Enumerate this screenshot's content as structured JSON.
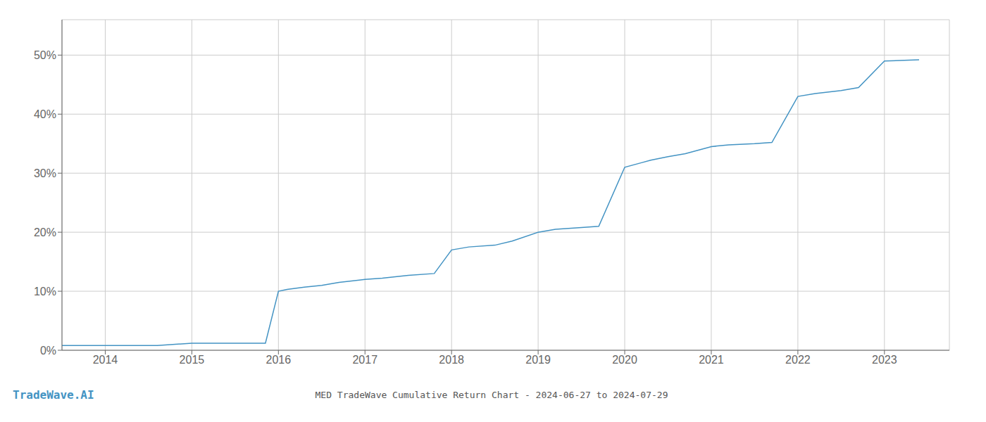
{
  "chart_data": {
    "type": "line",
    "title": "MED TradeWave Cumulative Return Chart - 2024-06-27 to 2024-07-29",
    "annotations": [
      "TradeWave.AI"
    ],
    "color": "#4393c3",
    "x": [
      2013.5,
      2014.0,
      2014.3,
      2014.6,
      2015.0,
      2015.1,
      2015.5,
      2015.85,
      2016.0,
      2016.1,
      2016.3,
      2016.5,
      2016.7,
      2017.0,
      2017.2,
      2017.5,
      2017.8,
      2018.0,
      2018.2,
      2018.5,
      2018.7,
      2019.0,
      2019.2,
      2019.5,
      2019.7,
      2020.0,
      2020.2,
      2020.3,
      2020.5,
      2020.7,
      2021.0,
      2021.2,
      2021.5,
      2021.7,
      2022.0,
      2022.2,
      2022.5,
      2022.7,
      2023.0,
      2023.4
    ],
    "values": [
      0.008,
      0.008,
      0.008,
      0.008,
      0.012,
      0.012,
      0.012,
      0.012,
      0.1,
      0.103,
      0.107,
      0.11,
      0.115,
      0.12,
      0.122,
      0.127,
      0.13,
      0.17,
      0.175,
      0.178,
      0.185,
      0.2,
      0.205,
      0.208,
      0.21,
      0.31,
      0.318,
      0.322,
      0.328,
      0.333,
      0.345,
      0.348,
      0.35,
      0.352,
      0.43,
      0.435,
      0.44,
      0.445,
      0.49,
      0.492
    ],
    "xlim": [
      2013.5,
      2023.75
    ],
    "xticks": [
      2014,
      2015,
      2016,
      2017,
      2018,
      2019,
      2020,
      2021,
      2022,
      2023
    ],
    "ylim": [
      0.0,
      0.56
    ],
    "yticks": [
      {
        "value": 0.0,
        "label": "0%"
      },
      {
        "value": 0.1,
        "label": "10%"
      },
      {
        "value": 0.2,
        "label": "20%"
      },
      {
        "value": 0.3,
        "label": "30%"
      },
      {
        "value": 0.4,
        "label": "40%"
      },
      {
        "value": 0.5,
        "label": "50%"
      }
    ],
    "grid": true
  }
}
